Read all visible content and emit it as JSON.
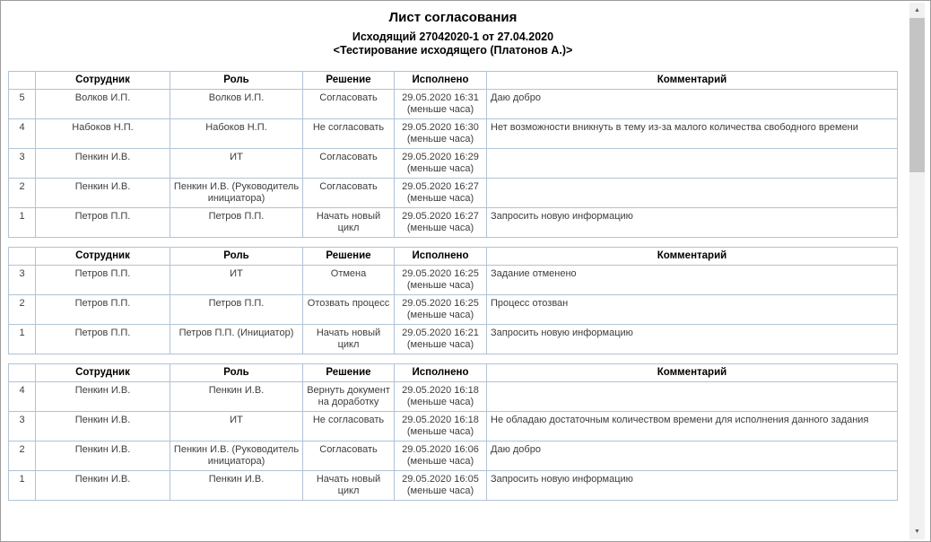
{
  "page": {
    "title": "Лист согласования",
    "subtitle_line1": "Исходящий 27042020-1 от 27.04.2020",
    "subtitle_line2": "<Тестирование исходящего (Платонов А.)>"
  },
  "columns": [
    "",
    "Сотрудник",
    "Роль",
    "Решение",
    "Исполнено",
    "Комментарий"
  ],
  "tables": [
    {
      "rows": [
        {
          "num": "5",
          "employee": "Волков И.П.",
          "role": "Волков И.П.",
          "decision": "Согласовать",
          "done": "29.05.2020 16:31\n(меньше часа)",
          "comment": "Даю добро"
        },
        {
          "num": "4",
          "employee": "Набоков Н.П.",
          "role": "Набоков Н.П.",
          "decision": "Не согласовать",
          "done": "29.05.2020 16:30\n(меньше часа)",
          "comment": "Нет возможности вникнуть в тему из-за малого количества свободного времени"
        },
        {
          "num": "3",
          "employee": "Пенкин И.В.",
          "role": "ИТ",
          "decision": "Согласовать",
          "done": "29.05.2020 16:29\n(меньше часа)",
          "comment": ""
        },
        {
          "num": "2",
          "employee": "Пенкин И.В.",
          "role": "Пенкин И.В. (Руководитель инициатора)",
          "decision": "Согласовать",
          "done": "29.05.2020 16:27\n(меньше часа)",
          "comment": ""
        },
        {
          "num": "1",
          "employee": "Петров П.П.",
          "role": "Петров П.П.",
          "decision": "Начать новый цикл",
          "done": "29.05.2020 16:27\n(меньше часа)",
          "comment": "Запросить новую информацию"
        }
      ]
    },
    {
      "rows": [
        {
          "num": "3",
          "employee": "Петров П.П.",
          "role": "ИТ",
          "decision": "Отмена",
          "done": "29.05.2020 16:25\n(меньше часа)",
          "comment": "Задание отменено"
        },
        {
          "num": "2",
          "employee": "Петров П.П.",
          "role": "Петров П.П.",
          "decision": "Отозвать процесс",
          "done": "29.05.2020 16:25\n(меньше часа)",
          "comment": "Процесс отозван"
        },
        {
          "num": "1",
          "employee": "Петров П.П.",
          "role": "Петров П.П. (Инициатор)",
          "decision": "Начать новый цикл",
          "done": "29.05.2020 16:21\n(меньше часа)",
          "comment": "Запросить новую информацию"
        }
      ]
    },
    {
      "rows": [
        {
          "num": "4",
          "employee": "Пенкин И.В.",
          "role": "Пенкин И.В.",
          "decision": "Вернуть документ на доработку",
          "done": "29.05.2020 16:18\n(меньше часа)",
          "comment": ""
        },
        {
          "num": "3",
          "employee": "Пенкин И.В.",
          "role": "ИТ",
          "decision": "Не согласовать",
          "done": "29.05.2020 16:18\n(меньше часа)",
          "comment": "Не обладаю достаточным количеством времени для исполнения данного задания"
        },
        {
          "num": "2",
          "employee": "Пенкин И.В.",
          "role": "Пенкин И.В. (Руководитель инициатора)",
          "decision": "Согласовать",
          "done": "29.05.2020 16:06\n(меньше часа)",
          "comment": "Даю добро"
        },
        {
          "num": "1",
          "employee": "Пенкин И.В.",
          "role": "Пенкин И.В.",
          "decision": "Начать новый цикл",
          "done": "29.05.2020 16:05\n(меньше часа)",
          "comment": "Запросить новую информацию"
        }
      ]
    }
  ],
  "scrollbar": {
    "up_glyph": "▲",
    "down_glyph": "▼"
  },
  "colors": {
    "table_border": "#b1c3d5",
    "scrollbar_thumb": "#c4c4c4",
    "cell_text": "#3d3d3d"
  }
}
